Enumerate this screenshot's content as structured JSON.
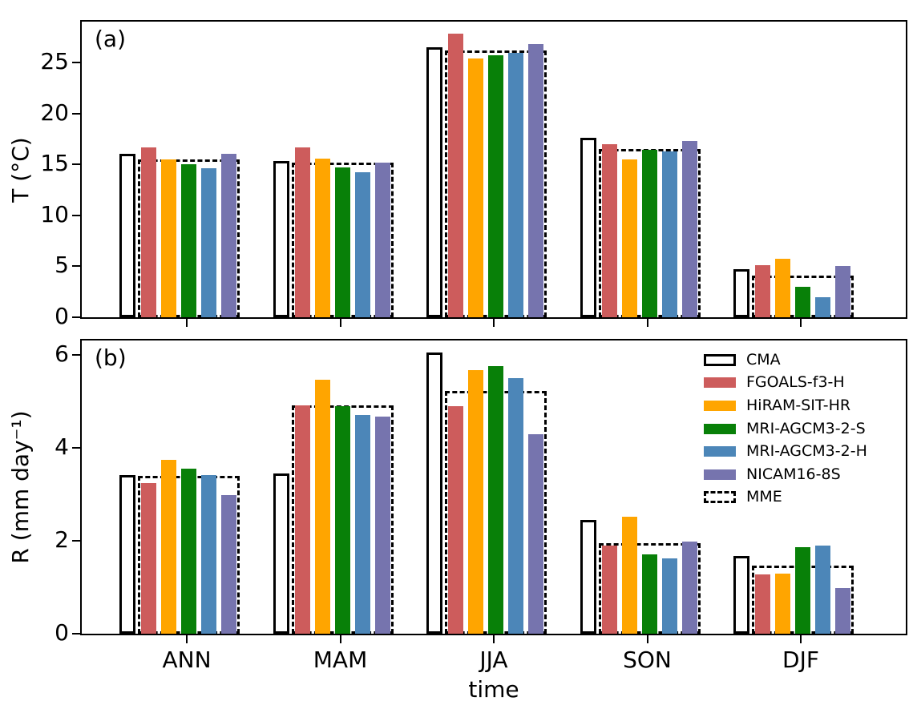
{
  "figure": {
    "xlabel": "time",
    "background": "#ffffff",
    "axis_color": "#000000"
  },
  "legend": {
    "position": "upper-right-of-panel-b",
    "items": [
      {
        "label": "CMA",
        "type": "outline",
        "color": "#000000",
        "fill": "#ffffff"
      },
      {
        "label": "FGOALS-f3-H",
        "type": "fill",
        "color": "#cd5c5c"
      },
      {
        "label": "HiRAM-SIT-HR",
        "type": "fill",
        "color": "#ffa500"
      },
      {
        "label": "MRI-AGCM3-2-S",
        "type": "fill",
        "color": "#088008"
      },
      {
        "label": "MRI-AGCM3-2-H",
        "type": "fill",
        "color": "#4c86b8"
      },
      {
        "label": "NICAM16-8S",
        "type": "fill",
        "color": "#7674ae"
      },
      {
        "label": "MME",
        "type": "dashed",
        "color": "#000000",
        "fill": "#ffffff"
      }
    ]
  },
  "chart_data": [
    {
      "type": "bar",
      "panel_label": "(a)",
      "ylabel": "T (°C)",
      "ylim": [
        0,
        29
      ],
      "yticks": [
        0,
        5,
        10,
        15,
        20,
        25
      ],
      "grid": false,
      "categories": [
        "ANN",
        "MAM",
        "JJA",
        "SON",
        "DJF"
      ],
      "series": [
        {
          "name": "CMA",
          "style": "outline",
          "values": [
            16.0,
            15.3,
            26.5,
            17.6,
            4.7
          ]
        },
        {
          "name": "FGOALS-f3-H",
          "color": "#cd5c5c",
          "values": [
            16.7,
            16.7,
            27.8,
            17.0,
            5.1
          ]
        },
        {
          "name": "HiRAM-SIT-HR",
          "color": "#ffa500",
          "values": [
            15.5,
            15.6,
            25.4,
            15.5,
            5.7
          ]
        },
        {
          "name": "MRI-AGCM3-2-S",
          "color": "#088008",
          "values": [
            15.0,
            14.7,
            25.7,
            16.4,
            3.0
          ]
        },
        {
          "name": "MRI-AGCM3-2-H",
          "color": "#4c86b8",
          "values": [
            14.6,
            14.2,
            25.9,
            16.3,
            2.0
          ]
        },
        {
          "name": "NICAM16-8S",
          "color": "#7674ae",
          "values": [
            16.0,
            15.2,
            26.8,
            17.3,
            5.0
          ]
        }
      ],
      "mme": {
        "name": "MME",
        "values": [
          15.5,
          15.2,
          26.2,
          16.5,
          4.1
        ]
      }
    },
    {
      "type": "bar",
      "panel_label": "(b)",
      "ylabel": "R (mm day⁻¹)",
      "ylim": [
        0,
        6.31
      ],
      "yticks": [
        0,
        2,
        4,
        6
      ],
      "grid": false,
      "categories": [
        "ANN",
        "MAM",
        "JJA",
        "SON",
        "DJF"
      ],
      "series": [
        {
          "name": "CMA",
          "style": "outline",
          "values": [
            3.41,
            3.44,
            6.05,
            2.45,
            1.67
          ]
        },
        {
          "name": "FGOALS-f3-H",
          "color": "#cd5c5c",
          "values": [
            3.25,
            4.91,
            4.9,
            1.9,
            1.27
          ]
        },
        {
          "name": "HiRAM-SIT-HR",
          "color": "#ffa500",
          "values": [
            3.74,
            5.46,
            5.67,
            2.52,
            1.3
          ]
        },
        {
          "name": "MRI-AGCM3-2-S",
          "color": "#088008",
          "values": [
            3.56,
            4.9,
            5.76,
            1.71,
            1.87
          ]
        },
        {
          "name": "MRI-AGCM3-2-H",
          "color": "#4c86b8",
          "values": [
            3.42,
            4.71,
            5.5,
            1.62,
            1.9
          ]
        },
        {
          "name": "NICAM16-8S",
          "color": "#7674ae",
          "values": [
            2.99,
            4.67,
            4.3,
            1.98,
            0.99
          ]
        }
      ],
      "mme": {
        "name": "MME",
        "values": [
          3.39,
          4.92,
          5.22,
          1.95,
          1.47
        ]
      }
    }
  ]
}
